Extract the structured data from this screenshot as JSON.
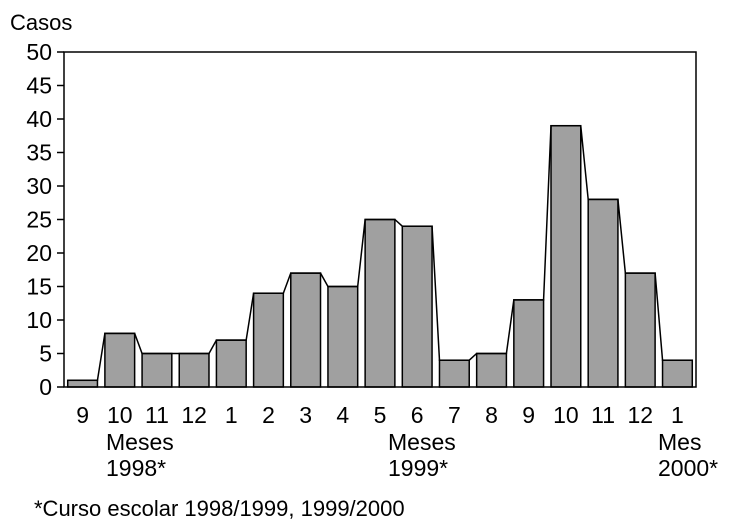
{
  "chart_data": {
    "type": "bar",
    "ylabel": "Casos",
    "ylim": [
      0,
      50
    ],
    "yticks": [
      0,
      5,
      10,
      15,
      20,
      25,
      30,
      35,
      40,
      45,
      50
    ],
    "categories": [
      "9",
      "10",
      "11",
      "12",
      "1",
      "2",
      "3",
      "4",
      "5",
      "6",
      "7",
      "8",
      "9",
      "10",
      "11",
      "12",
      "1"
    ],
    "values": [
      1,
      8,
      5,
      5,
      7,
      14,
      17,
      15,
      25,
      24,
      4,
      5,
      13,
      39,
      28,
      17,
      4
    ],
    "bar_color": "#a0a0a0",
    "groups": [
      {
        "line1": "Meses",
        "line2": "1998*"
      },
      {
        "line1": "Meses",
        "line2": "1999*"
      },
      {
        "line1": "Mes",
        "line2": "2000*"
      }
    ],
    "footnote": "*Curso escolar 1998/1999, 1999/2000",
    "legend": "none",
    "grid": false
  }
}
